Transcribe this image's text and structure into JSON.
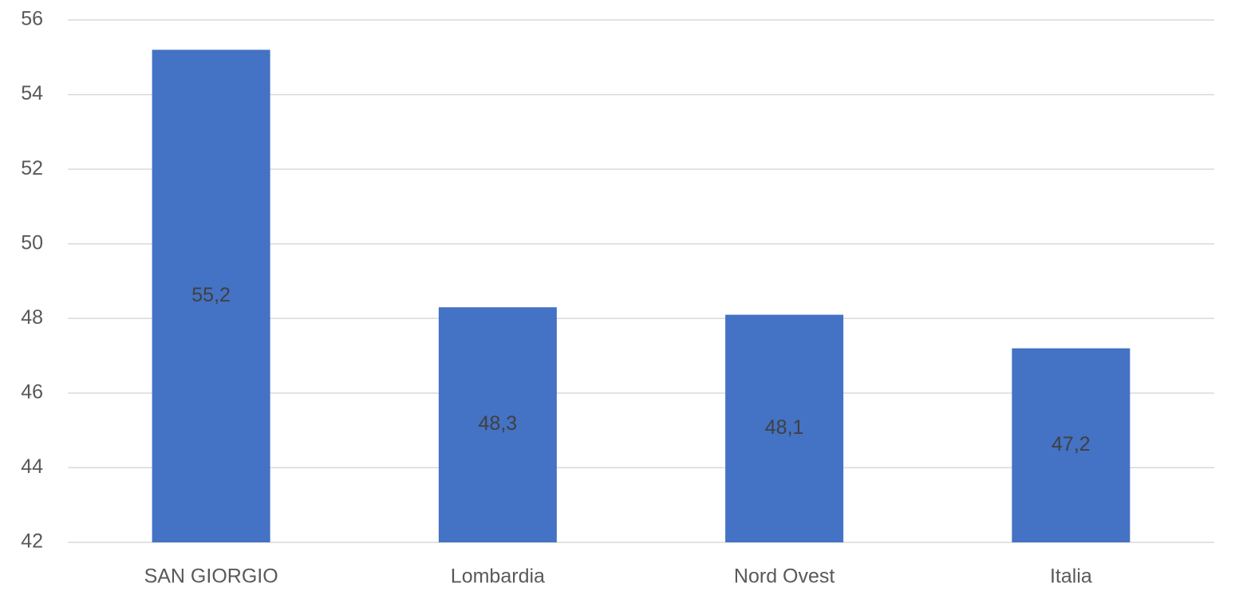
{
  "chart_data": {
    "type": "bar",
    "categories": [
      "SAN GIORGIO",
      "Lombardia",
      "Nord Ovest",
      "Italia"
    ],
    "values": [
      55.2,
      48.3,
      48.1,
      47.2
    ],
    "data_labels": [
      "55,2",
      "48,3",
      "48,1",
      "47,2"
    ],
    "title": "",
    "xlabel": "",
    "ylabel": "",
    "ylim": [
      42,
      56
    ],
    "yticks": [
      42,
      44,
      46,
      48,
      50,
      52,
      54,
      56
    ],
    "ytick_labels": [
      "42",
      "44",
      "46",
      "48",
      "50",
      "52",
      "54",
      "56"
    ],
    "grid": true,
    "legend": "none",
    "bar_color": "#4472c4"
  }
}
